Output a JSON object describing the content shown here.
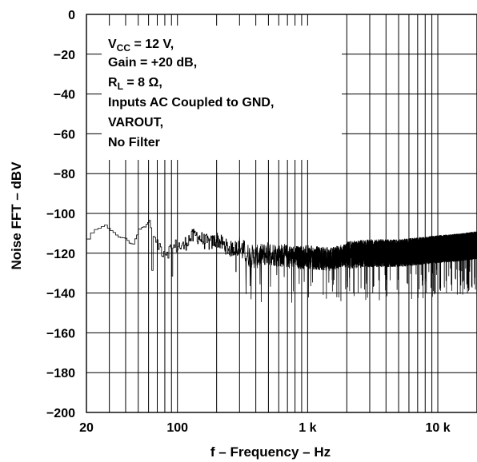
{
  "chart_data": {
    "type": "line",
    "title": "",
    "xlabel": "f – Frequency – Hz",
    "ylabel": "Noise FFT – dBV",
    "x_scale": "log",
    "xlim": [
      20,
      20000
    ],
    "ylim": [
      -200,
      0
    ],
    "x_ticks": [
      {
        "value": 20,
        "label": "20"
      },
      {
        "value": 100,
        "label": "100"
      },
      {
        "value": 1000,
        "label": "1 k"
      },
      {
        "value": 10000,
        "label": "10 k"
      }
    ],
    "y_ticks": [
      {
        "value": 0,
        "label": "0"
      },
      {
        "value": -20,
        "label": "−20"
      },
      {
        "value": -40,
        "label": "−40"
      },
      {
        "value": -60,
        "label": "−60"
      },
      {
        "value": -80,
        "label": "−80"
      },
      {
        "value": -100,
        "label": "−100"
      },
      {
        "value": -120,
        "label": "−120"
      },
      {
        "value": -140,
        "label": "−140"
      },
      {
        "value": -160,
        "label": "−160"
      },
      {
        "value": -180,
        "label": "−180"
      },
      {
        "value": -200,
        "label": "−200"
      }
    ],
    "grid": true,
    "annotation": {
      "vcc_symbol": "V",
      "vcc_sub": "CC",
      "vcc_value": " = 12 V,",
      "gain": "Gain = +20 dB,",
      "rl_symbol": "R",
      "rl_sub": "L",
      "rl_value": " = 8 Ω,",
      "inputs": "Inputs AC Coupled to GND,",
      "varout": "VAROUT,",
      "filter": "No Filter"
    },
    "series": [
      {
        "x": [
          20,
          22,
          25,
          28,
          32,
          36,
          40,
          45,
          50,
          55,
          60,
          65,
          70,
          75,
          80,
          90,
          100,
          110,
          120,
          140,
          160,
          180,
          200,
          250,
          300,
          350,
          400,
          500,
          600,
          800,
          1000,
          1500,
          2000,
          3000,
          5000,
          7000,
          10000,
          15000,
          20000
        ],
        "y": [
          -113,
          -109,
          -107,
          -106,
          -110,
          -112,
          -113,
          -116,
          -108,
          -107,
          -104,
          -112,
          -115,
          -118,
          -119,
          -118,
          -116,
          -117,
          -113,
          -111,
          -114,
          -115,
          -113,
          -118,
          -117,
          -121,
          -122,
          -120,
          -121,
          -122,
          -122,
          -123,
          -121,
          -120,
          -120,
          -119,
          -118,
          -117,
          -116
        ]
      }
    ]
  }
}
